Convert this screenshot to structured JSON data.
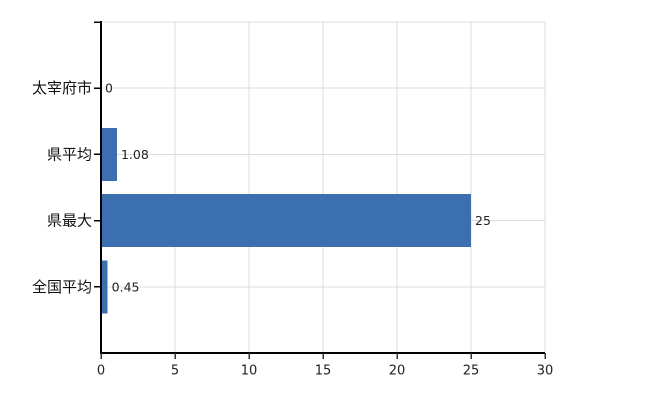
{
  "chart_data": {
    "type": "bar",
    "orientation": "horizontal",
    "categories": [
      "太宰府市",
      "県平均",
      "県最大",
      "全国平均"
    ],
    "values": [
      0,
      1.08,
      25,
      0.45
    ],
    "value_labels": [
      "0",
      "1.08",
      "25",
      "0.45"
    ],
    "x_ticks": [
      0,
      5,
      10,
      15,
      20,
      25,
      30
    ],
    "x_tick_labels": [
      "0",
      "5",
      "10",
      "15",
      "20",
      "25",
      "30"
    ],
    "xlim": [
      0,
      30
    ],
    "grid": true,
    "legend": false,
    "colors": {
      "bar": "#3C6FAF",
      "gridline": "#DCDCDC",
      "axis": "#000000",
      "category_label": "#111111",
      "value_label": "#222222",
      "tick_label": "#222222",
      "background": "#FFFFFF"
    }
  }
}
